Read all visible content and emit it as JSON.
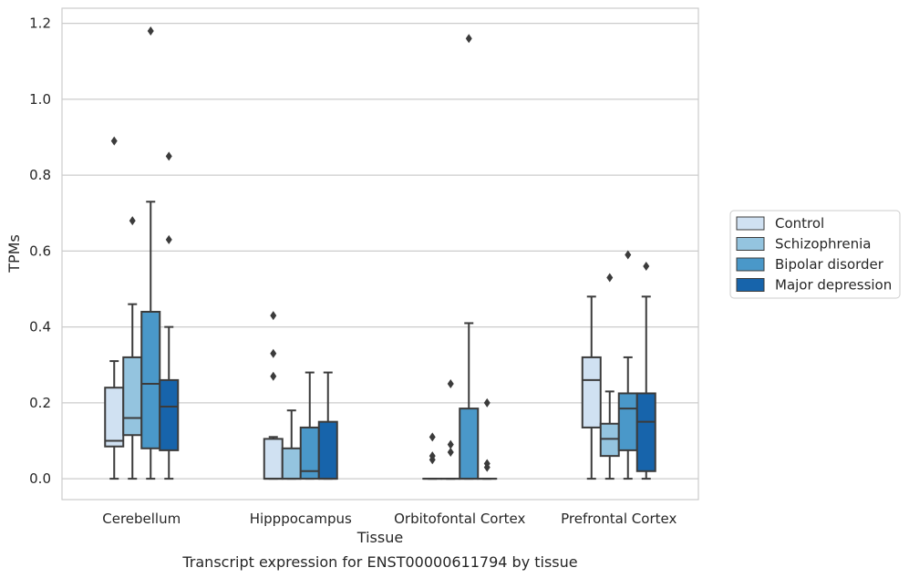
{
  "chart_data": {
    "type": "box",
    "title": "",
    "caption": "Transcript expression for ENST00000611794 by tissue",
    "xlabel": "Tissue",
    "ylabel": "TPMs",
    "ylim": [
      -0.055,
      1.24
    ],
    "yticks": [
      0.0,
      0.2,
      0.4,
      0.6,
      0.8,
      1.0,
      1.2
    ],
    "ytick_labels": [
      "0.0",
      "0.2",
      "0.4",
      "0.6",
      "0.8",
      "1.0",
      "1.2"
    ],
    "grid": true,
    "legend_position": "right",
    "categories": [
      "Cerebellum",
      "Hipppocampus",
      "Orbitofontal Cortex",
      "Prefrontal Cortex"
    ],
    "series": [
      {
        "name": "Control",
        "color": "#d0e1f2",
        "boxes": [
          {
            "whislo": 0.0,
            "q1": 0.085,
            "med": 0.1,
            "q3": 0.24,
            "whishi": 0.31,
            "fliers": [
              0.89
            ]
          },
          {
            "whislo": 0.0,
            "q1": 0.0,
            "med": 0.0,
            "q3": 0.105,
            "whishi": 0.11,
            "fliers": [
              0.27,
              0.33,
              0.43
            ]
          },
          {
            "whislo": 0.0,
            "q1": 0.0,
            "med": 0.0,
            "q3": 0.0,
            "whishi": 0.0,
            "fliers": [
              0.05,
              0.06,
              0.11
            ]
          },
          {
            "whislo": 0.0,
            "q1": 0.135,
            "med": 0.26,
            "q3": 0.32,
            "whishi": 0.48,
            "fliers": []
          }
        ]
      },
      {
        "name": "Schizophrenia",
        "color": "#94c4df",
        "boxes": [
          {
            "whislo": 0.0,
            "q1": 0.115,
            "med": 0.16,
            "q3": 0.32,
            "whishi": 0.46,
            "fliers": [
              0.68
            ]
          },
          {
            "whislo": 0.0,
            "q1": 0.0,
            "med": 0.0,
            "q3": 0.08,
            "whishi": 0.18,
            "fliers": []
          },
          {
            "whislo": 0.0,
            "q1": 0.0,
            "med": 0.0,
            "q3": 0.0,
            "whishi": 0.0,
            "fliers": [
              0.07,
              0.09,
              0.25
            ]
          },
          {
            "whislo": 0.0,
            "q1": 0.06,
            "med": 0.105,
            "q3": 0.145,
            "whishi": 0.23,
            "fliers": [
              0.53
            ]
          }
        ]
      },
      {
        "name": "Bipolar disorder",
        "color": "#4a98c9",
        "boxes": [
          {
            "whislo": 0.0,
            "q1": 0.08,
            "med": 0.25,
            "q3": 0.44,
            "whishi": 0.73,
            "fliers": [
              1.18
            ]
          },
          {
            "whislo": 0.0,
            "q1": 0.0,
            "med": 0.02,
            "q3": 0.135,
            "whishi": 0.28,
            "fliers": []
          },
          {
            "whislo": 0.0,
            "q1": 0.0,
            "med": 0.0,
            "q3": 0.185,
            "whishi": 0.41,
            "fliers": [
              1.16
            ]
          },
          {
            "whislo": 0.0,
            "q1": 0.075,
            "med": 0.185,
            "q3": 0.225,
            "whishi": 0.32,
            "fliers": [
              0.59
            ]
          }
        ]
      },
      {
        "name": "Major depression",
        "color": "#1764ab",
        "boxes": [
          {
            "whislo": 0.0,
            "q1": 0.075,
            "med": 0.19,
            "q3": 0.26,
            "whishi": 0.4,
            "fliers": [
              0.63,
              0.85
            ]
          },
          {
            "whislo": 0.0,
            "q1": 0.0,
            "med": 0.0,
            "q3": 0.15,
            "whishi": 0.28,
            "fliers": []
          },
          {
            "whislo": 0.0,
            "q1": 0.0,
            "med": 0.0,
            "q3": 0.0,
            "whishi": 0.0,
            "fliers": [
              0.03,
              0.04,
              0.2
            ]
          },
          {
            "whislo": 0.0,
            "q1": 0.02,
            "med": 0.15,
            "q3": 0.225,
            "whishi": 0.48,
            "fliers": [
              0.56
            ]
          }
        ]
      }
    ]
  }
}
